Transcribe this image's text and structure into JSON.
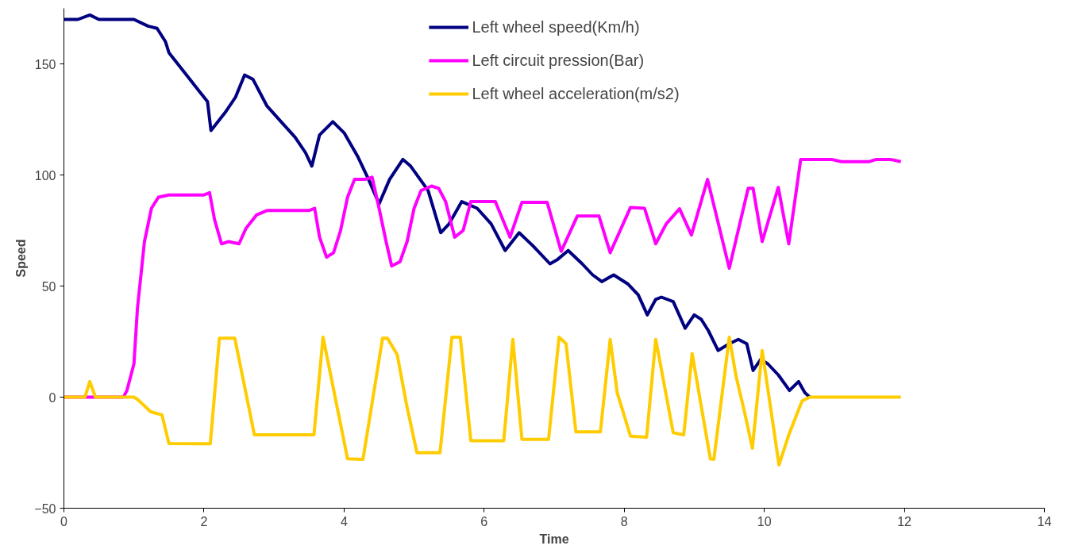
{
  "chart_data": {
    "type": "line",
    "xlabel": "Time",
    "ylabel": "Speed",
    "xlim": [
      0,
      14
    ],
    "xticks": [
      0,
      2,
      4,
      6,
      8,
      10,
      12,
      14
    ],
    "ylim": [
      -50,
      175
    ],
    "yticks": [
      -50,
      0,
      50,
      100,
      150
    ],
    "grid": false,
    "legend": "top",
    "marker": "none",
    "line_style": "solid",
    "series": [
      {
        "name": "Left wheel speed(Km/h)",
        "color": "#000080",
        "x": [
          0,
          0.2,
          0.37,
          0.5,
          1.0,
          1.2,
          1.33,
          1.45,
          1.5,
          1.75,
          1.95,
          2.05,
          2.1,
          2.3,
          2.45,
          2.58,
          2.7,
          2.9,
          3.1,
          3.3,
          3.45,
          3.54,
          3.65,
          3.84,
          4.0,
          4.2,
          4.35,
          4.5,
          4.65,
          4.84,
          4.95,
          5.2,
          5.38,
          5.5,
          5.68,
          5.9,
          6.1,
          6.3,
          6.5,
          6.7,
          6.94,
          7.05,
          7.2,
          7.4,
          7.55,
          7.68,
          7.85,
          8.05,
          8.2,
          8.33,
          8.45,
          8.53,
          8.7,
          8.87,
          9.0,
          9.1,
          9.2,
          9.34,
          9.5,
          9.63,
          9.75,
          9.84,
          9.95,
          10.05,
          10.2,
          10.36,
          10.49,
          10.58,
          10.65
        ],
        "values": [
          170,
          170,
          172,
          170,
          170,
          167,
          166,
          160,
          155,
          145,
          137,
          133,
          120,
          128,
          135,
          145,
          143,
          131,
          124,
          117,
          110,
          104,
          118,
          124,
          119,
          108,
          98,
          87,
          98,
          107,
          104,
          93,
          74,
          78,
          88,
          85,
          78,
          66,
          74,
          68,
          60,
          62,
          66,
          60,
          55,
          52,
          55,
          51,
          46,
          37,
          44,
          45,
          43,
          31,
          37,
          35,
          30,
          21,
          24,
          26,
          24,
          12,
          17,
          15,
          10,
          3,
          7,
          2,
          0
        ]
      },
      {
        "name": "Left circuit pression(Bar)",
        "color": "#ff00ff",
        "x": [
          0,
          0.85,
          0.9,
          1.0,
          1.05,
          1.15,
          1.25,
          1.35,
          1.5,
          2.0,
          2.08,
          2.15,
          2.25,
          2.35,
          2.5,
          2.6,
          2.75,
          2.9,
          3.5,
          3.58,
          3.65,
          3.75,
          3.85,
          3.95,
          4.05,
          4.15,
          4.3,
          4.4,
          4.5,
          4.6,
          4.68,
          4.8,
          4.9,
          5.0,
          5.1,
          5.25,
          5.35,
          5.45,
          5.58,
          5.7,
          5.81,
          6.16,
          6.37,
          6.54,
          6.9,
          7.1,
          7.33,
          7.64,
          7.8,
          8.09,
          8.29,
          8.45,
          8.6,
          8.79,
          8.96,
          9.19,
          9.5,
          9.77,
          9.84,
          9.97,
          10.2,
          10.35,
          10.52,
          10.96,
          11.1,
          11.5,
          11.6,
          11.8,
          11.95
        ],
        "values": [
          0,
          0,
          3,
          15,
          40,
          70,
          85,
          90,
          91,
          91,
          92,
          80,
          69,
          70,
          69,
          76,
          82,
          84,
          84,
          85,
          72,
          63,
          65,
          75,
          90,
          98,
          98,
          99,
          85,
          70,
          59,
          61,
          70,
          85,
          93,
          95,
          94,
          88,
          72,
          75,
          88,
          88,
          72,
          87.7,
          87.7,
          65.6,
          81.5,
          81.5,
          65,
          85.4,
          85,
          69,
          78,
          84.8,
          73,
          98,
          58,
          94,
          94,
          70,
          94.4,
          69,
          107,
          107,
          106,
          106,
          107,
          107,
          106
        ]
      },
      {
        "name": "Left wheel acceleration(m/s2)",
        "color": "#ffcc00",
        "x": [
          0,
          0.3,
          0.37,
          0.45,
          1.0,
          1.05,
          1.24,
          1.4,
          1.5,
          2.09,
          2.22,
          2.44,
          2.72,
          3.57,
          3.7,
          4.05,
          4.27,
          4.55,
          4.62,
          4.76,
          4.89,
          5.04,
          5.37,
          5.54,
          5.66,
          5.81,
          6.28,
          6.41,
          6.54,
          6.92,
          7.07,
          7.17,
          7.31,
          7.66,
          7.8,
          7.9,
          8.09,
          8.32,
          8.45,
          8.7,
          8.85,
          8.97,
          9.23,
          9.28,
          9.5,
          9.6,
          9.72,
          9.83,
          9.97,
          10.21,
          10.35,
          10.54,
          10.65,
          11.95
        ],
        "values": [
          0,
          0,
          7,
          0,
          0,
          -1,
          -6.6,
          -8,
          -20.9,
          -21,
          26.5,
          26.5,
          -17,
          -17,
          27,
          -27.8,
          -28,
          26.5,
          26.5,
          19,
          -3,
          -25,
          -25,
          27,
          27,
          -19.6,
          -19.6,
          26,
          -19,
          -19,
          27,
          24,
          -15.6,
          -15.6,
          26,
          2,
          -17.6,
          -18,
          26,
          -16,
          -17,
          19.6,
          -27.8,
          -28,
          27,
          9,
          -7,
          -23,
          21,
          -30.5,
          -17,
          -1.7,
          0,
          0
        ]
      }
    ]
  }
}
